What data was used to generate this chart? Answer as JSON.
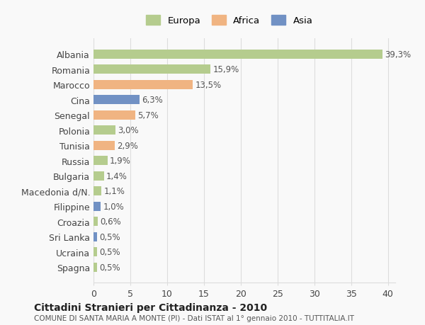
{
  "categories": [
    "Albania",
    "Romania",
    "Marocco",
    "Cina",
    "Senegal",
    "Polonia",
    "Tunisia",
    "Russia",
    "Bulgaria",
    "Macedonia d/N.",
    "Filippine",
    "Croazia",
    "Sri Lanka",
    "Ucraina",
    "Spagna"
  ],
  "values": [
    39.3,
    15.9,
    13.5,
    6.3,
    5.7,
    3.0,
    2.9,
    1.9,
    1.4,
    1.1,
    1.0,
    0.6,
    0.5,
    0.5,
    0.5
  ],
  "labels": [
    "39,3%",
    "15,9%",
    "13,5%",
    "6,3%",
    "5,7%",
    "3,0%",
    "2,9%",
    "1,9%",
    "1,4%",
    "1,1%",
    "1,0%",
    "0,6%",
    "0,5%",
    "0,5%",
    "0,5%"
  ],
  "colors": [
    "#b5cc8e",
    "#b5cc8e",
    "#f0b482",
    "#7191c4",
    "#f0b482",
    "#b5cc8e",
    "#f0b482",
    "#b5cc8e",
    "#b5cc8e",
    "#b5cc8e",
    "#7191c4",
    "#b5cc8e",
    "#7191c4",
    "#b5cc8e",
    "#b5cc8e"
  ],
  "legend_labels": [
    "Europa",
    "Africa",
    "Asia"
  ],
  "legend_colors": [
    "#b5cc8e",
    "#f0b482",
    "#7191c4"
  ],
  "title": "Cittadini Stranieri per Cittadinanza - 2010",
  "subtitle": "COMUNE DI SANTA MARIA A MONTE (PI) - Dati ISTAT al 1° gennaio 2010 - TUTTITALIA.IT",
  "xlim": [
    0,
    41
  ],
  "xticks": [
    0,
    5,
    10,
    15,
    20,
    25,
    30,
    35,
    40
  ],
  "background_color": "#f9f9f9",
  "grid_color": "#dddddd"
}
